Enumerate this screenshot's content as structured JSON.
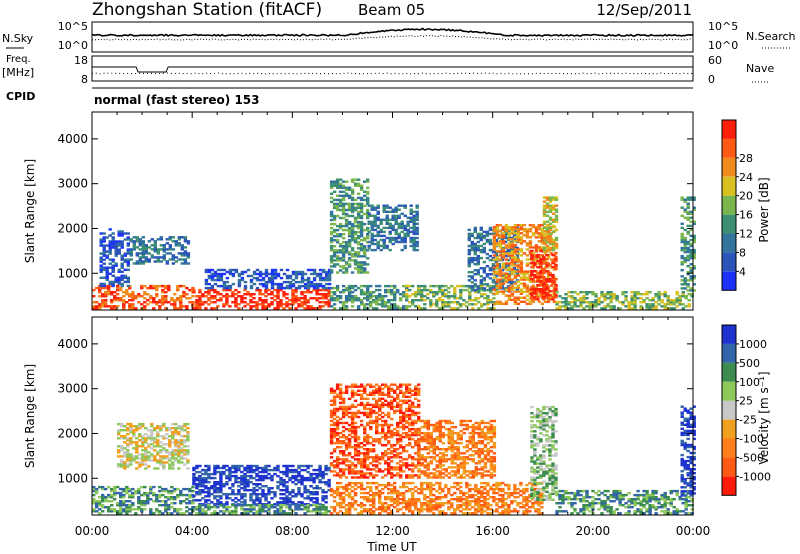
{
  "header": {
    "station": "Zhongshan Station (fitACF)",
    "beam": "Beam 05",
    "date": "12/Sep/2011",
    "cpid_label": "CPID",
    "cpid_text": "normal (fast stereo) 153"
  },
  "top_panels": {
    "nsky": {
      "label": "N.Sky",
      "right_label": "N.Search",
      "ticks_left": [
        "10^5",
        "10^0"
      ],
      "ticks_right": [
        "10^5",
        "10^0"
      ]
    },
    "freq": {
      "label_top": "Freq.",
      "label_unit": "[MHz]",
      "right_label": "Nave",
      "ticks_left": [
        "18",
        "8"
      ],
      "ticks_right": [
        "60",
        "0"
      ]
    }
  },
  "x_axis": {
    "label": "Time UT",
    "ticks": [
      "00:00",
      "04:00",
      "08:00",
      "12:00",
      "16:00",
      "20:00",
      "00:00"
    ],
    "range_hours": [
      0,
      24
    ]
  },
  "colors": {
    "power": [
      "#1e32ff",
      "#2b55b9",
      "#33749e",
      "#3d8f72",
      "#7ab64d",
      "#d8c020",
      "#f08a1c",
      "#ff5a14",
      "#ff1e0a"
    ],
    "velocity": [
      "#ff1a0a",
      "#ff5a14",
      "#ff7d1a",
      "#f0a01e",
      "#c8c8c8",
      "#8cc85a",
      "#3c8c50",
      "#3264aa",
      "#1e32d0"
    ]
  },
  "chart_data": [
    {
      "type": "heatmap",
      "name": "power",
      "ylabel": "Slant Range [km]",
      "yticks": [
        1000,
        2000,
        3000,
        4000
      ],
      "ylim": [
        180,
        4600
      ],
      "colorbar_label": "Power [dB]",
      "colorbar_ticks": [
        "4",
        "8",
        "12",
        "16",
        "20",
        "24",
        "28"
      ],
      "regions": [
        {
          "t": [
            0.0,
            4.0
          ],
          "r": [
            200,
            700
          ],
          "level": 7
        },
        {
          "t": [
            0.3,
            1.5
          ],
          "r": [
            700,
            2000
          ],
          "level": 1
        },
        {
          "t": [
            1.5,
            3.8
          ],
          "r": [
            1200,
            1800
          ],
          "level": 2
        },
        {
          "t": [
            4.0,
            9.5
          ],
          "r": [
            200,
            650
          ],
          "level": 8
        },
        {
          "t": [
            4.5,
            9.5
          ],
          "r": [
            650,
            1100
          ],
          "level": 1
        },
        {
          "t": [
            9.5,
            12.5
          ],
          "r": [
            200,
            700
          ],
          "level": 3
        },
        {
          "t": [
            9.5,
            11.0
          ],
          "r": [
            1000,
            3100
          ],
          "level": 3
        },
        {
          "t": [
            11.0,
            13.0
          ],
          "r": [
            1500,
            2500
          ],
          "level": 2
        },
        {
          "t": [
            12.5,
            16.0
          ],
          "r": [
            200,
            700
          ],
          "level": 4
        },
        {
          "t": [
            15.0,
            17.0
          ],
          "r": [
            600,
            2000
          ],
          "level": 2
        },
        {
          "t": [
            16.0,
            18.5
          ],
          "r": [
            300,
            2100
          ],
          "level": 6
        },
        {
          "t": [
            17.5,
            18.5
          ],
          "r": [
            400,
            1500
          ],
          "level": 8
        },
        {
          "t": [
            18.0,
            18.5
          ],
          "r": [
            1500,
            2700
          ],
          "level": 5
        },
        {
          "t": [
            18.5,
            24.0
          ],
          "r": [
            200,
            600
          ],
          "level": 4
        },
        {
          "t": [
            23.5,
            24.0
          ],
          "r": [
            600,
            2700
          ],
          "level": 3
        }
      ]
    },
    {
      "type": "heatmap",
      "name": "velocity",
      "ylabel": "Slant Range [km]",
      "yticks": [
        1000,
        2000,
        3000,
        4000
      ],
      "ylim": [
        180,
        4600
      ],
      "colorbar_label": "Velocity [m s⁻¹]",
      "colorbar_ticks": [
        "1000",
        "500",
        "100",
        "25",
        "-25",
        "-100",
        "-500",
        "-1000"
      ],
      "regions": [
        {
          "t": [
            0.0,
            4.0
          ],
          "r": [
            200,
            800
          ],
          "level": 6
        },
        {
          "t": [
            1.0,
            3.8
          ],
          "r": [
            1200,
            2200
          ],
          "level": 4
        },
        {
          "t": [
            4.0,
            9.5
          ],
          "r": [
            400,
            1300
          ],
          "level": 8
        },
        {
          "t": [
            4.0,
            9.5
          ],
          "r": [
            200,
            400
          ],
          "level": 6
        },
        {
          "t": [
            9.5,
            18.0
          ],
          "r": [
            200,
            900
          ],
          "level": 2
        },
        {
          "t": [
            9.5,
            13.0
          ],
          "r": [
            1000,
            3100
          ],
          "level": 1
        },
        {
          "t": [
            13.0,
            16.0
          ],
          "r": [
            1000,
            2300
          ],
          "level": 2
        },
        {
          "t": [
            17.5,
            18.5
          ],
          "r": [
            500,
            2600
          ],
          "level": 5
        },
        {
          "t": [
            18.5,
            24.0
          ],
          "r": [
            200,
            700
          ],
          "level": 6
        },
        {
          "t": [
            23.5,
            24.0
          ],
          "r": [
            600,
            2600
          ],
          "level": 8
        }
      ]
    }
  ]
}
